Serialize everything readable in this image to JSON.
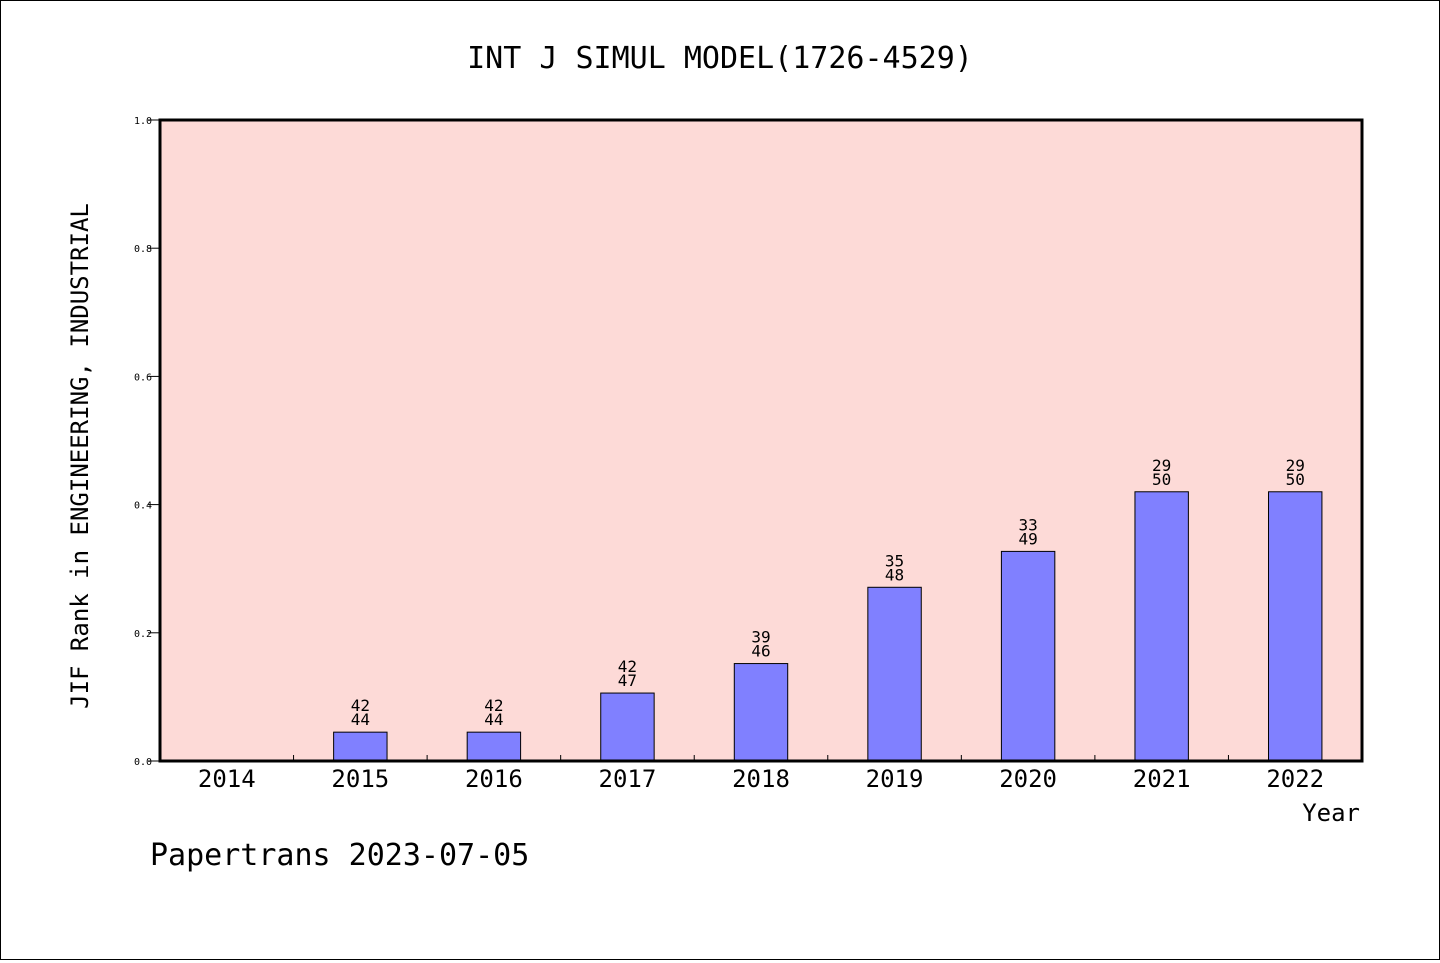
{
  "chart_data": {
    "type": "bar",
    "title": "INT J SIMUL MODEL(1726-4529)",
    "xlabel": "Year",
    "ylabel": "JIF Rank in ENGINEERING, INDUSTRIAL",
    "categories": [
      "2014",
      "2015",
      "2016",
      "2017",
      "2018",
      "2019",
      "2020",
      "2021",
      "2022"
    ],
    "values": [
      null,
      0.045,
      0.045,
      0.106,
      0.152,
      0.271,
      0.327,
      0.42,
      0.42
    ],
    "label_top": [
      "",
      "42",
      "42",
      "42",
      "39",
      "35",
      "33",
      "29",
      "29"
    ],
    "label_bottom": [
      "",
      "44",
      "44",
      "47",
      "46",
      "48",
      "49",
      "50",
      "50"
    ],
    "ylim": [
      0,
      1.0
    ],
    "yticks": [
      "0.0",
      "0.2",
      "0.4",
      "0.6",
      "0.8",
      "1.0"
    ],
    "grid": false,
    "colors": {
      "plot_background": "#fddad7",
      "bar_fill": "#8080ff",
      "bar_stroke": "#000000"
    }
  },
  "footer": {
    "source": "Papertrans 2023-07-05"
  }
}
